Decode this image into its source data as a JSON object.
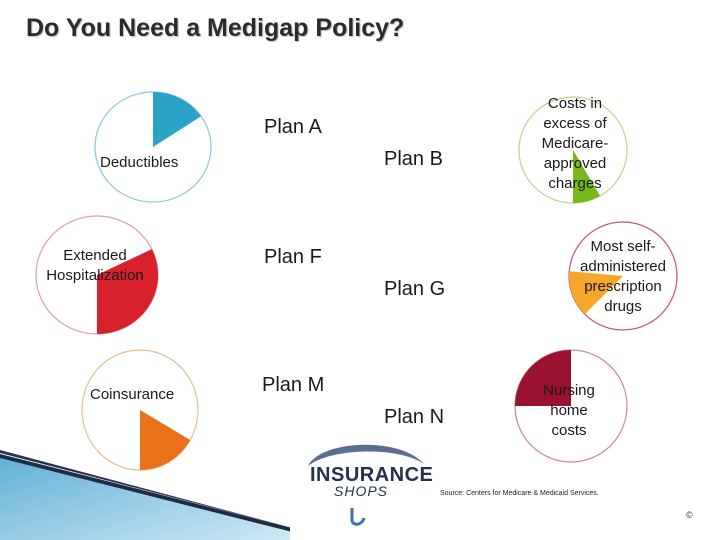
{
  "title": "Do You Need a Medigap Policy?",
  "benefits": [
    {
      "label": "Deductibles",
      "color": "#2aa3c6",
      "start_deg": 0,
      "sweep_deg": 56
    },
    {
      "label": "Extended Hospitalization",
      "color": "#d9212b",
      "start_deg": 64,
      "sweep_deg": 116
    },
    {
      "label": "Coinsurance",
      "color": "#e8711a",
      "start_deg": 120,
      "sweep_deg": 60
    },
    {
      "label": "Costs in excess of Medicare-approved charges",
      "color": "#78b81a",
      "start_deg": 150,
      "sweep_deg": 30
    },
    {
      "label": "Most self-administered prescription drugs",
      "color": "#f6a72a",
      "start_deg": 225,
      "sweep_deg": 50
    },
    {
      "label": "Nursing home costs",
      "color": "#9b1230",
      "start_deg": 270,
      "sweep_deg": 90
    }
  ],
  "plans": [
    "Plan A",
    "Plan B",
    "Plan F",
    "Plan G",
    "Plan M",
    "Plan N"
  ],
  "logo": {
    "brand": "INSURANCE",
    "sub": "SHOPS"
  },
  "source": "Source: Centers for Medicare & Medicaid Services.",
  "footer_mark": "©"
}
